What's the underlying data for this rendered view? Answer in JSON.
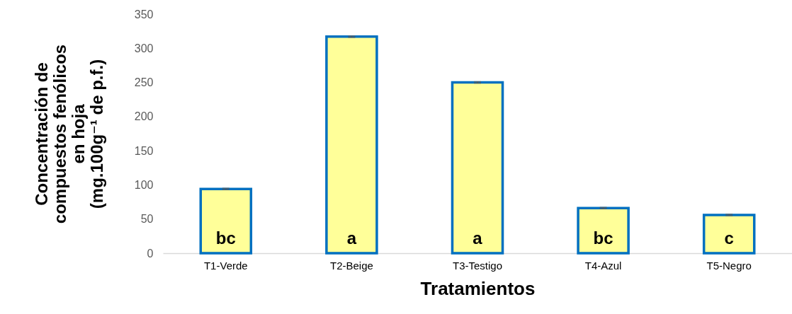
{
  "chart_data": {
    "type": "bar",
    "xlabel": "Tratamientos",
    "ylabel": "Concentración de\ncompuestos fenólicos\nen hoja\n(mg.100g⁻¹ de p.f.)",
    "categories": [
      "T1-Verde",
      "T2-Beige",
      "T3-Testigo",
      "T4-Azul",
      "T5-Negro"
    ],
    "values": [
      94,
      317,
      250,
      66,
      56
    ],
    "errors": [
      1,
      1,
      1,
      1,
      1
    ],
    "color": "#ffff99",
    "ylim": [
      0,
      350
    ],
    "yticks": [
      0,
      50,
      100,
      150,
      200,
      250,
      300,
      350
    ],
    "grid": false,
    "annotations": [
      "bc",
      "a",
      "a",
      "bc",
      "c"
    ]
  }
}
